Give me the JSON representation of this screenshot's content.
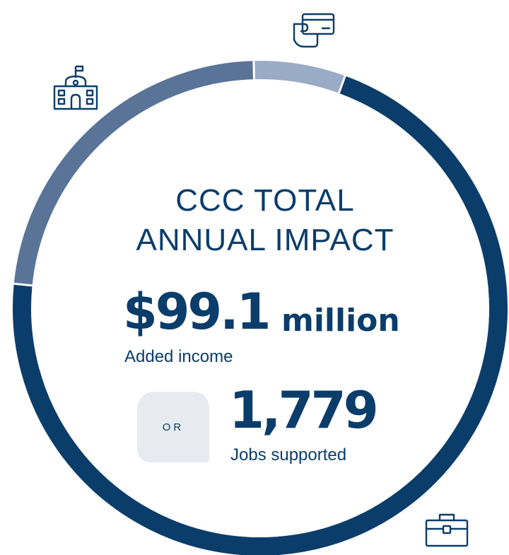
{
  "chart_data": {
    "type": "pie",
    "style": "donut",
    "title_line1": "CCC TOTAL",
    "title_line2": "ANNUAL IMPACT",
    "slices": [
      {
        "label": "",
        "value": 71.0,
        "color": "#0b3d6b",
        "icon": "briefcase-icon"
      },
      {
        "label": "",
        "value": 23.0,
        "color": "#5a7498",
        "icon": "school-building-icon"
      },
      {
        "label": "",
        "value": 6.0,
        "color": "#9aabc6",
        "icon": "hand-card-icon"
      }
    ],
    "total_income": {
      "value": "$99.1",
      "unit": "million",
      "label": "Added income"
    },
    "separator": "OR",
    "jobs": {
      "value": "1,779",
      "label": "Jobs supported"
    }
  }
}
